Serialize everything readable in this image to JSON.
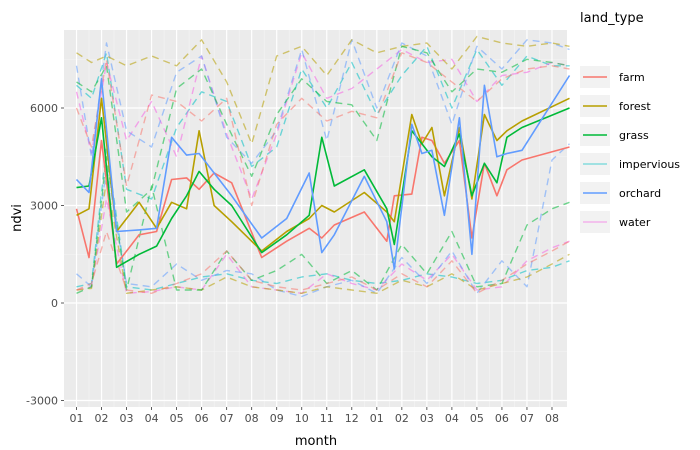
{
  "chart_data": {
    "type": "line",
    "xlabel": "month",
    "ylabel": "ndvi",
    "ylim": [
      -3200,
      8400
    ],
    "yticks": [
      -3000,
      0,
      3000,
      6000
    ],
    "xlim": [
      0.5,
      20.6
    ],
    "x_ticks": [
      {
        "pos": 1,
        "label": "01"
      },
      {
        "pos": 2,
        "label": "02"
      },
      {
        "pos": 3,
        "label": "03"
      },
      {
        "pos": 4,
        "label": "04"
      },
      {
        "pos": 5,
        "label": "05"
      },
      {
        "pos": 6,
        "label": "06"
      },
      {
        "pos": 7,
        "label": "07"
      },
      {
        "pos": 8,
        "label": "08"
      },
      {
        "pos": 9,
        "label": "09"
      },
      {
        "pos": 10,
        "label": "10"
      },
      {
        "pos": 11,
        "label": "11"
      },
      {
        "pos": 12,
        "label": "12"
      },
      {
        "pos": 13,
        "label": "01"
      },
      {
        "pos": 14,
        "label": "02"
      },
      {
        "pos": 15,
        "label": "03"
      },
      {
        "pos": 16,
        "label": "04"
      },
      {
        "pos": 17,
        "label": "05"
      },
      {
        "pos": 18,
        "label": "06"
      },
      {
        "pos": 19,
        "label": "07"
      },
      {
        "pos": 20,
        "label": "08"
      }
    ],
    "grid": true,
    "legend": {
      "title": "land_type",
      "position": "right",
      "entries": [
        {
          "label": "farm",
          "color": "#F8766D",
          "muted": false
        },
        {
          "label": "forest",
          "color": "#B79F00",
          "muted": false
        },
        {
          "label": "grass",
          "color": "#00BA38",
          "muted": false
        },
        {
          "label": "impervious",
          "color": "#00BFC4",
          "muted": true
        },
        {
          "label": "orchard",
          "color": "#619CFF",
          "muted": false
        },
        {
          "label": "water",
          "color": "#F564E3",
          "muted": true
        }
      ]
    },
    "series": [
      {
        "name": "farm",
        "color": "#F8766D",
        "dash": false,
        "x": [
          1,
          1.5,
          2,
          2.6,
          3.5,
          4.2,
          4.8,
          5.4,
          5.9,
          6.5,
          7.2,
          8.4,
          9.4,
          10.3,
          10.8,
          11.3,
          12.5,
          13.4,
          13.7,
          14.4,
          14.8,
          15.2,
          15.7,
          16.3,
          16.8,
          17.3,
          17.8,
          18.2,
          18.8,
          20.7
        ],
        "y": [
          2900,
          1400,
          5000,
          1200,
          2100,
          2200,
          3800,
          3850,
          3500,
          4000,
          3700,
          1400,
          1900,
          2300,
          2000,
          2400,
          2800,
          1900,
          3300,
          3350,
          5100,
          5000,
          4300,
          5000,
          2000,
          4300,
          3300,
          4100,
          4400,
          4800
        ]
      },
      {
        "name": "forest",
        "color": "#B79F00",
        "dash": false,
        "x": [
          1,
          1.5,
          2,
          2.6,
          3.5,
          4.2,
          4.8,
          5.4,
          5.9,
          6.5,
          7.2,
          8.4,
          9.4,
          10.3,
          10.8,
          11.3,
          12.5,
          13.4,
          13.7,
          14.4,
          14.8,
          15.2,
          15.7,
          16.3,
          16.8,
          17.3,
          17.8,
          18.2,
          18.8,
          20.7
        ],
        "y": [
          2700,
          2900,
          6300,
          2200,
          3100,
          2300,
          3100,
          2900,
          5300,
          3000,
          2500,
          1600,
          2200,
          2600,
          3000,
          2800,
          3400,
          2800,
          2500,
          5800,
          4900,
          5400,
          3300,
          5400,
          3200,
          5800,
          5000,
          5300,
          5600,
          6300
        ]
      },
      {
        "name": "grass",
        "color": "#00BA38",
        "dash": false,
        "x": [
          1,
          1.5,
          2,
          2.6,
          3.5,
          4.2,
          4.8,
          5.4,
          5.9,
          6.5,
          7.2,
          8.4,
          9.4,
          10.3,
          10.8,
          11.3,
          12.5,
          13.4,
          13.7,
          14.4,
          14.8,
          15.2,
          15.7,
          16.3,
          16.8,
          17.3,
          17.8,
          18.2,
          18.8,
          20.7
        ],
        "y": [
          3550,
          3600,
          5700,
          1100,
          1500,
          1750,
          2600,
          3300,
          4050,
          3500,
          3000,
          1550,
          2100,
          2700,
          5100,
          3600,
          4100,
          2900,
          1800,
          5300,
          4900,
          4500,
          4200,
          5200,
          3300,
          4300,
          3700,
          5100,
          5400,
          6000
        ]
      },
      {
        "name": "orchard",
        "color": "#619CFF",
        "dash": false,
        "x": [
          1,
          1.5,
          2,
          2.6,
          3.5,
          4.2,
          4.8,
          5.4,
          5.9,
          6.5,
          7.2,
          8.4,
          9.4,
          10.3,
          10.8,
          11.3,
          12.5,
          13.4,
          13.7,
          14.4,
          14.8,
          15.2,
          15.7,
          16.3,
          16.8,
          17.3,
          17.8,
          18.2,
          18.8,
          20.7
        ],
        "y": [
          3800,
          3400,
          6900,
          2200,
          2250,
          2300,
          5100,
          4550,
          4600,
          4000,
          3300,
          2000,
          2600,
          4000,
          1550,
          2100,
          3900,
          2500,
          1050,
          5500,
          4600,
          4700,
          2700,
          5700,
          1500,
          6700,
          4500,
          4600,
          4700,
          7000
        ]
      },
      {
        "name": "impervious-max",
        "color": "#00BFC4",
        "dash": true,
        "x": [
          1,
          1.6,
          2.2,
          3,
          4,
          5,
          6,
          7,
          8,
          9,
          10,
          11,
          12,
          13,
          14,
          15,
          16,
          17,
          18,
          19,
          20,
          20.7
        ],
        "y": [
          6700,
          6300,
          7700,
          3500,
          3200,
          5400,
          6500,
          6200,
          4200,
          4800,
          7200,
          6000,
          7400,
          5800,
          7000,
          7900,
          6000,
          7800,
          6700,
          7600,
          7300,
          7300
        ]
      },
      {
        "name": "impervious-min",
        "color": "#00BFC4",
        "dash": true,
        "x": [
          1,
          1.6,
          2.2,
          3,
          4,
          5,
          6,
          7,
          8,
          9,
          10,
          11,
          12,
          13,
          14,
          15,
          16,
          17,
          18,
          19,
          20,
          20.7
        ],
        "y": [
          500,
          600,
          4800,
          500,
          400,
          600,
          800,
          900,
          700,
          600,
          800,
          900,
          700,
          600,
          700,
          900,
          800,
          600,
          700,
          1000,
          1100,
          1300
        ]
      },
      {
        "name": "water-max",
        "color": "#F564E3",
        "dash": true,
        "x": [
          1,
          1.6,
          2.2,
          3,
          4,
          5,
          6,
          7,
          8,
          9,
          10,
          11,
          12,
          13,
          14,
          15,
          16,
          17,
          18,
          19,
          20,
          20.7
        ],
        "y": [
          6500,
          4600,
          7400,
          5000,
          6200,
          4500,
          7600,
          5200,
          3200,
          5200,
          7700,
          6300,
          6600,
          7200,
          7800,
          7400,
          7500,
          6200,
          7000,
          7100,
          7400,
          7300
        ]
      },
      {
        "name": "water-min",
        "color": "#F564E3",
        "dash": true,
        "x": [
          1,
          1.6,
          2.2,
          3,
          4,
          5,
          6,
          7,
          8,
          9,
          10,
          11,
          12,
          13,
          14,
          15,
          16,
          17,
          18,
          19,
          20,
          20.7
        ],
        "y": [
          400,
          500,
          3200,
          300,
          350,
          500,
          400,
          1500,
          500,
          400,
          300,
          900,
          600,
          400,
          1200,
          700,
          1500,
          400,
          500,
          1300,
          1700,
          1900
        ]
      },
      {
        "name": "orchard-max",
        "color": "#619CFF",
        "dash": true,
        "x": [
          1,
          1.6,
          2.2,
          3,
          4,
          5,
          6,
          7,
          8,
          9,
          10,
          11,
          12,
          13,
          14,
          15,
          16,
          17,
          18,
          19,
          20,
          20.7
        ],
        "y": [
          7300,
          4500,
          8000,
          5300,
          4800,
          7100,
          7600,
          5100,
          4300,
          5300,
          7800,
          5000,
          8100,
          6000,
          8000,
          7600,
          5500,
          7900,
          7200,
          8100,
          8000,
          7800
        ]
      },
      {
        "name": "orchard-min",
        "color": "#619CFF",
        "dash": true,
        "x": [
          1,
          1.6,
          2.2,
          3,
          4,
          5,
          6,
          7,
          8,
          9,
          10,
          11,
          12,
          13,
          14,
          15,
          16,
          17,
          18,
          19,
          20,
          20.7
        ],
        "y": [
          900,
          500,
          4200,
          600,
          500,
          1200,
          700,
          1000,
          900,
          400,
          200,
          500,
          700,
          300,
          1400,
          600,
          1600,
          300,
          1300,
          500,
          4400,
          4900
        ]
      },
      {
        "name": "forest-max",
        "color": "#B79F00",
        "dash": true,
        "x": [
          1,
          1.6,
          2.2,
          3,
          4,
          5,
          6,
          7,
          8,
          9,
          10,
          11,
          12,
          13,
          14,
          15,
          16,
          17,
          18,
          19,
          20,
          20.7
        ],
        "y": [
          7700,
          7400,
          7600,
          7300,
          7600,
          7300,
          8100,
          6800,
          4900,
          7600,
          7900,
          7000,
          8100,
          7700,
          7900,
          8000,
          7200,
          8200,
          8000,
          7900,
          8000,
          7900
        ]
      },
      {
        "name": "forest-min",
        "color": "#B79F00",
        "dash": true,
        "x": [
          1,
          1.6,
          2.2,
          3,
          4,
          5,
          6,
          7,
          8,
          9,
          10,
          11,
          12,
          13,
          14,
          15,
          16,
          17,
          18,
          19,
          20,
          20.7
        ],
        "y": [
          400,
          450,
          3800,
          300,
          400,
          500,
          400,
          800,
          500,
          400,
          300,
          500,
          400,
          300,
          700,
          500,
          900,
          400,
          600,
          800,
          1200,
          1500
        ]
      },
      {
        "name": "grass-max",
        "color": "#00BA38",
        "dash": true,
        "x": [
          1,
          1.6,
          2.2,
          3,
          4,
          5,
          6,
          7,
          8,
          9,
          10,
          11,
          12,
          13,
          14,
          15,
          16,
          17,
          18,
          19,
          20,
          20.7
        ],
        "y": [
          6800,
          6500,
          7300,
          2800,
          3500,
          6600,
          7200,
          5500,
          3900,
          5800,
          6900,
          6200,
          6100,
          5000,
          7900,
          7700,
          6500,
          7200,
          7100,
          7500,
          7400,
          7300
        ]
      },
      {
        "name": "grass-min",
        "color": "#00BA38",
        "dash": true,
        "x": [
          1,
          1.6,
          2.2,
          3,
          4,
          5,
          6,
          7,
          8,
          9,
          10,
          11,
          12,
          13,
          14,
          15,
          16,
          17,
          18,
          19,
          20,
          20.7
        ],
        "y": [
          300,
          500,
          4500,
          400,
          3600,
          400,
          400,
          1600,
          700,
          1000,
          1500,
          600,
          1000,
          400,
          1800,
          900,
          2200,
          500,
          600,
          2400,
          2900,
          3100
        ]
      },
      {
        "name": "farm-max",
        "color": "#F8766D",
        "dash": true,
        "x": [
          1,
          1.6,
          2.2,
          3,
          4,
          5,
          6,
          7,
          8,
          9,
          10,
          11,
          12,
          13,
          14,
          15,
          16,
          17,
          18,
          19,
          20,
          20.7
        ],
        "y": [
          6000,
          4800,
          7500,
          3600,
          6400,
          6200,
          5600,
          6300,
          3000,
          5500,
          6300,
          5600,
          5900,
          5700,
          7700,
          7400,
          6800,
          6200,
          6900,
          7200,
          7300,
          7200
        ]
      },
      {
        "name": "farm-min",
        "color": "#F8766D",
        "dash": true,
        "x": [
          1,
          1.6,
          2.2,
          3,
          4,
          5,
          6,
          7,
          8,
          9,
          10,
          11,
          12,
          13,
          14,
          15,
          16,
          17,
          18,
          19,
          20,
          20.7
        ],
        "y": [
          400,
          600,
          2200,
          400,
          300,
          600,
          900,
          1600,
          700,
          500,
          400,
          600,
          800,
          400,
          900,
          500,
          1300,
          300,
          700,
          1200,
          1600,
          1900
        ]
      }
    ]
  }
}
